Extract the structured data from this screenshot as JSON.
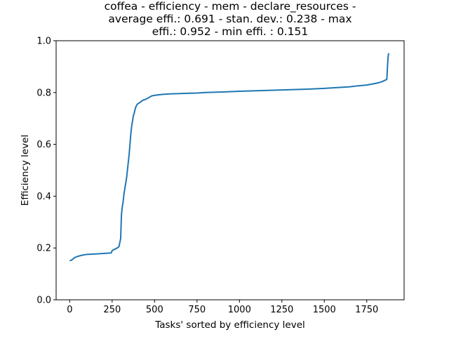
{
  "chart_data": {
    "type": "line",
    "title": [
      "coffea - efficiency - mem - declare_resources -",
      "average effi.: 0.691 - stan. dev.: 0.238 - max",
      "effi.: 0.952 - min effi. : 0.151"
    ],
    "xlabel": "Tasks' sorted by efficiency level",
    "ylabel": "Efficiency level",
    "xlim": [
      -80,
      1970
    ],
    "ylim": [
      0.0,
      1.0
    ],
    "xticks": [
      0,
      250,
      500,
      750,
      1000,
      1250,
      1500,
      1750
    ],
    "xtick_labels": [
      "0",
      "250",
      "500",
      "750",
      "1000",
      "1250",
      "1500",
      "1750"
    ],
    "yticks": [
      0.0,
      0.2,
      0.4,
      0.6,
      0.8,
      1.0
    ],
    "ytick_labels": [
      "0.0",
      "0.2",
      "0.4",
      "0.6",
      "0.8",
      "1.0"
    ],
    "grid": false,
    "series": [
      {
        "color": "#1f77b4",
        "x": [
          0,
          10,
          20,
          30,
          45,
          60,
          80,
          100,
          150,
          200,
          245,
          250,
          265,
          280,
          290,
          295,
          300,
          305,
          310,
          315,
          320,
          325,
          330,
          335,
          340,
          345,
          350,
          355,
          360,
          365,
          370,
          375,
          380,
          385,
          390,
          395,
          400,
          410,
          420,
          430,
          440,
          450,
          460,
          470,
          480,
          490,
          500,
          520,
          550,
          600,
          650,
          700,
          750,
          800,
          900,
          1000,
          1100,
          1200,
          1300,
          1400,
          1500,
          1550,
          1600,
          1650,
          1700,
          1750,
          1800,
          1820,
          1840,
          1850,
          1860,
          1865,
          1868,
          1870,
          1872,
          1875,
          1877,
          1880
        ],
        "y": [
          0.151,
          0.153,
          0.158,
          0.163,
          0.167,
          0.17,
          0.173,
          0.175,
          0.177,
          0.179,
          0.181,
          0.19,
          0.195,
          0.2,
          0.205,
          0.22,
          0.235,
          0.33,
          0.36,
          0.38,
          0.41,
          0.43,
          0.45,
          0.47,
          0.5,
          0.53,
          0.56,
          0.6,
          0.64,
          0.67,
          0.69,
          0.71,
          0.72,
          0.735,
          0.745,
          0.752,
          0.756,
          0.76,
          0.765,
          0.77,
          0.772,
          0.775,
          0.778,
          0.782,
          0.786,
          0.788,
          0.789,
          0.791,
          0.793,
          0.795,
          0.796,
          0.797,
          0.798,
          0.8,
          0.802,
          0.805,
          0.807,
          0.809,
          0.811,
          0.813,
          0.816,
          0.818,
          0.82,
          0.822,
          0.826,
          0.829,
          0.835,
          0.838,
          0.842,
          0.845,
          0.848,
          0.85,
          0.851,
          0.87,
          0.9,
          0.93,
          0.945,
          0.952
        ]
      }
    ]
  }
}
